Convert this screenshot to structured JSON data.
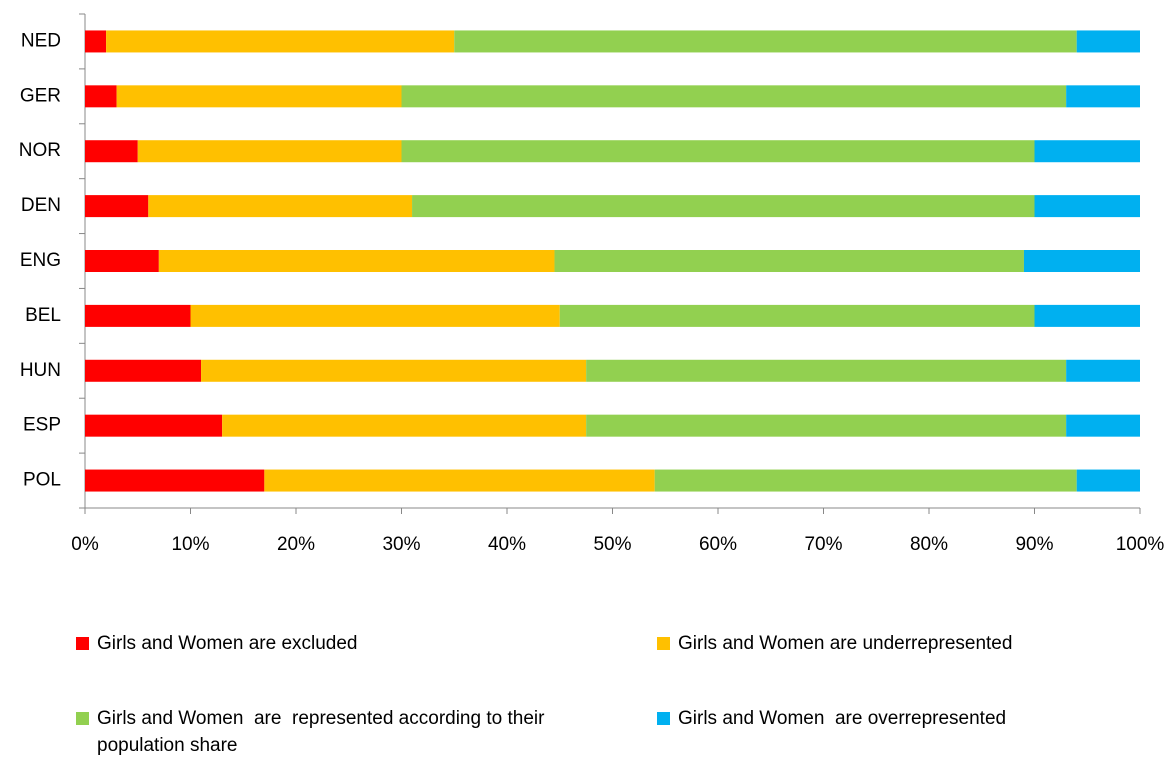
{
  "chart_data": {
    "type": "bar",
    "orientation": "horizontal",
    "stacked": true,
    "categories": [
      "NED",
      "GER",
      "NOR",
      "DEN",
      "ENG",
      "BEL",
      "HUN",
      "ESP",
      "POL"
    ],
    "series": [
      {
        "name": "Girls and Women are excluded",
        "color": "#ff0000",
        "values": [
          2,
          3,
          5,
          6,
          7,
          10,
          11,
          13,
          17
        ]
      },
      {
        "name": "Girls and Women are underrepresented",
        "color": "#ffc000",
        "values": [
          33,
          27,
          25,
          25,
          37.5,
          35,
          36.5,
          34.5,
          37
        ]
      },
      {
        "name": "Girls and Women  are  represented according to their population share",
        "color": "#92d050",
        "values": [
          59,
          63,
          60,
          59,
          44.5,
          45,
          45.5,
          45.5,
          40
        ]
      },
      {
        "name": "Girls and Women  are overrepresented",
        "color": "#00b0f0",
        "values": [
          6,
          7,
          10,
          10,
          11,
          10,
          7,
          7,
          6
        ]
      }
    ],
    "xlim": [
      0,
      100
    ],
    "xticks": [
      {
        "value": 0,
        "label": "0%"
      },
      {
        "value": 10,
        "label": "10%"
      },
      {
        "value": 20,
        "label": "20%"
      },
      {
        "value": 30,
        "label": "30%"
      },
      {
        "value": 40,
        "label": "40%"
      },
      {
        "value": 50,
        "label": "50%"
      },
      {
        "value": 60,
        "label": "60%"
      },
      {
        "value": 70,
        "label": "70%"
      },
      {
        "value": 80,
        "label": "80%"
      },
      {
        "value": 90,
        "label": "90%"
      },
      {
        "value": 100,
        "label": "100%"
      }
    ],
    "grid": false,
    "legend": "bottom"
  }
}
